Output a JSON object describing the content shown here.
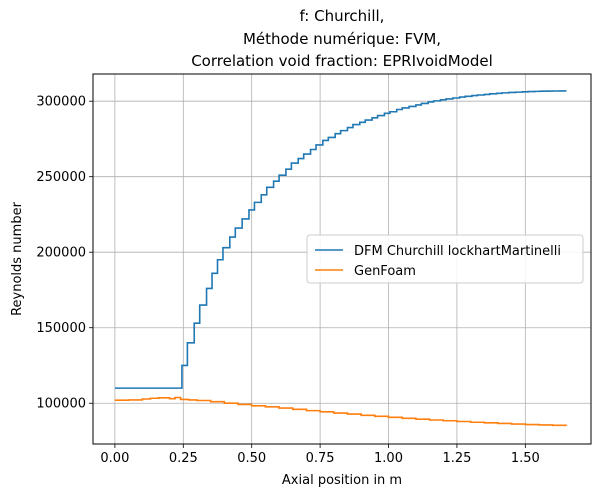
{
  "chart_data": {
    "type": "line",
    "drawstyle": "steps",
    "title_lines": [
      "f: Churchill,",
      "Méthode numérique: FVM,",
      "Correlation void fraction: EPRIvoidModel"
    ],
    "xlabel": "Axial position in m",
    "ylabel": "Reynolds number",
    "xlim": [
      -0.08,
      1.74
    ],
    "ylim": [
      73000,
      318000
    ],
    "xticks": [
      0.0,
      0.25,
      0.5,
      0.75,
      1.0,
      1.25,
      1.5
    ],
    "xtick_labels": [
      "0.00",
      "0.25",
      "0.50",
      "0.75",
      "1.00",
      "1.25",
      "1.50"
    ],
    "yticks": [
      100000,
      150000,
      200000,
      250000,
      300000
    ],
    "ytick_labels": [
      "100000",
      "150000",
      "200000",
      "250000",
      "300000"
    ],
    "grid": true,
    "legend_position": "center-right",
    "series": [
      {
        "name": "DFM Churchill lockhartMartinelli",
        "color": "#1f77b4",
        "x": [
          0.0,
          0.245,
          0.265,
          0.29,
          0.31,
          0.335,
          0.355,
          0.375,
          0.395,
          0.42,
          0.44,
          0.465,
          0.49,
          0.51,
          0.535,
          0.555,
          0.58,
          0.6,
          0.625,
          0.645,
          0.67,
          0.69,
          0.715,
          0.735,
          0.76,
          0.78,
          0.805,
          0.825,
          0.85,
          0.87,
          0.895,
          0.915,
          0.94,
          0.96,
          0.985,
          1.005,
          1.03,
          1.05,
          1.075,
          1.1,
          1.12,
          1.145,
          1.165,
          1.19,
          1.21,
          1.235,
          1.26,
          1.28,
          1.305,
          1.325,
          1.35,
          1.37,
          1.395,
          1.415,
          1.44,
          1.465,
          1.49,
          1.51,
          1.535,
          1.555,
          1.58,
          1.6,
          1.625,
          1.65
        ],
        "y": [
          110000,
          125000,
          140000,
          153000,
          165000,
          176000,
          186000,
          195000,
          203000,
          210000,
          216000,
          222000,
          228000,
          233000,
          238000,
          243000,
          247000,
          251000,
          255000,
          259000,
          262000,
          265000,
          268000,
          271000,
          274000,
          276000,
          278500,
          280500,
          282500,
          284500,
          286000,
          287500,
          289000,
          290500,
          292000,
          293000,
          294500,
          295500,
          296500,
          297500,
          298500,
          299500,
          300200,
          300900,
          301500,
          302100,
          302700,
          303200,
          303700,
          304100,
          304500,
          304900,
          305200,
          305500,
          305800,
          306000,
          306200,
          306400,
          306500,
          306600,
          306700,
          306750,
          306800,
          306800
        ]
      },
      {
        "name": "GenFoam",
        "color": "#ff7f0e",
        "x": [
          0.0,
          0.05,
          0.1,
          0.13,
          0.16,
          0.2,
          0.22,
          0.24,
          0.27,
          0.3,
          0.35,
          0.4,
          0.45,
          0.5,
          0.55,
          0.6,
          0.65,
          0.7,
          0.75,
          0.8,
          0.85,
          0.9,
          0.95,
          1.0,
          1.05,
          1.1,
          1.15,
          1.2,
          1.25,
          1.3,
          1.35,
          1.4,
          1.45,
          1.5,
          1.55,
          1.6,
          1.65
        ],
        "y": [
          102000,
          102200,
          102800,
          103300,
          103600,
          103000,
          103800,
          102500,
          102200,
          101800,
          101000,
          100000,
          99200,
          98300,
          97600,
          96800,
          96000,
          95100,
          94300,
          93500,
          92800,
          92000,
          91300,
          90700,
          90000,
          89400,
          88900,
          88400,
          87900,
          87400,
          87000,
          86600,
          86200,
          85900,
          85600,
          85400,
          85200
        ]
      }
    ]
  }
}
